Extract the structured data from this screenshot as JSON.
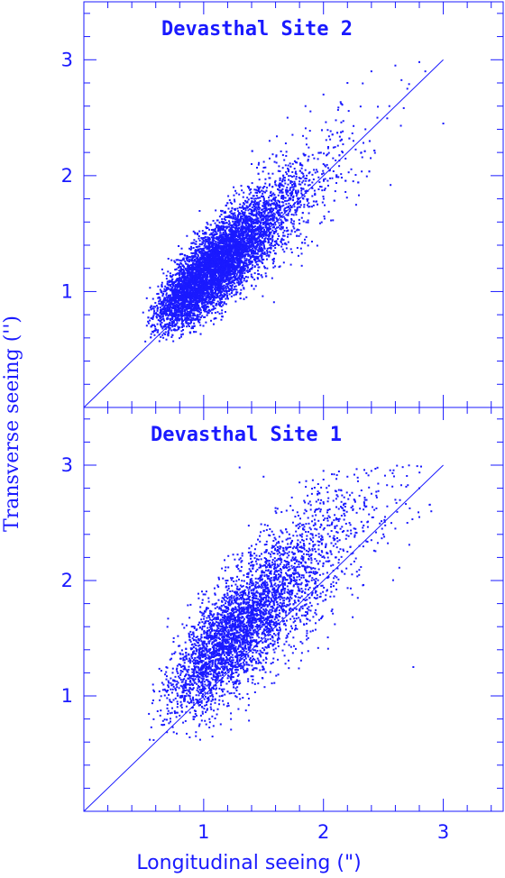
{
  "chart_data": {
    "type": "scatter",
    "xlabel": "Longitudinal seeing (\")",
    "ylabel": "Transverse seeing ('')",
    "xlim": [
      0.0,
      3.5
    ],
    "ylim": [
      0.0,
      3.5
    ],
    "x_tick_labels": [
      "1",
      "2",
      "3"
    ],
    "y_tick_labels": [
      "1",
      "2",
      "3"
    ],
    "colors": {
      "points": "#1a1aff",
      "axes": "#1a1aff"
    },
    "panels": [
      {
        "title": "Devasthal Site 2",
        "reference_line": {
          "from": [
            0,
            0
          ],
          "to": [
            3,
            3
          ]
        },
        "series": [
          {
            "description_points": "dense cloud, approx 9000 points",
            "x": [
              0.55,
              0.62,
              0.68,
              0.72,
              0.75,
              0.78,
              0.8,
              0.82,
              0.85,
              0.88,
              0.9,
              0.92,
              0.95,
              0.98,
              1.0,
              1.02,
              1.05,
              1.08,
              1.1,
              1.12,
              1.15,
              1.18,
              1.2,
              1.22,
              1.25,
              1.28,
              1.3,
              1.33,
              1.36,
              1.4,
              1.44,
              1.48,
              1.52,
              1.56,
              1.6,
              1.65,
              1.7,
              1.75,
              1.8,
              1.86,
              1.92,
              2.0,
              2.08,
              2.16,
              2.25,
              2.35,
              2.45,
              2.55,
              2.7,
              2.85,
              0.95,
              1.1,
              1.25,
              1.4,
              1.55,
              1.7,
              1.85,
              2.0,
              2.2,
              2.4,
              2.6,
              2.8,
              3.0
            ],
            "y": [
              0.75,
              0.8,
              0.85,
              0.9,
              0.92,
              0.95,
              1.0,
              1.02,
              1.05,
              1.08,
              1.1,
              1.12,
              1.15,
              1.18,
              1.2,
              1.22,
              1.25,
              1.28,
              1.3,
              1.32,
              1.35,
              1.38,
              1.4,
              1.42,
              1.45,
              1.48,
              1.5,
              1.52,
              1.55,
              1.58,
              1.62,
              1.66,
              1.7,
              1.74,
              1.78,
              1.82,
              1.86,
              1.9,
              1.95,
              2.0,
              2.05,
              2.1,
              2.15,
              2.2,
              2.3,
              2.4,
              2.5,
              2.6,
              2.75,
              2.9,
              1.5,
              1.7,
              1.9,
              2.1,
              2.3,
              2.5,
              2.6,
              2.7,
              2.8,
              2.9,
              2.95,
              2.98,
              2.45
            ]
          }
        ]
      },
      {
        "title": "Devasthal Site 1",
        "reference_line": {
          "from": [
            0,
            0
          ],
          "to": [
            3,
            3
          ]
        },
        "series": [
          {
            "description_points": "cloud, approx 4500 points",
            "x": [
              0.55,
              0.65,
              0.72,
              0.78,
              0.82,
              0.86,
              0.9,
              0.95,
              1.0,
              1.05,
              1.1,
              1.15,
              1.2,
              1.25,
              1.3,
              1.35,
              1.4,
              1.45,
              1.5,
              1.55,
              1.6,
              1.65,
              1.7,
              1.75,
              1.8,
              1.9,
              2.0,
              2.1,
              2.2,
              2.3,
              2.4,
              2.5,
              2.6,
              2.7,
              2.8,
              2.9,
              1.2,
              1.4,
              1.6,
              1.8,
              2.0,
              2.2,
              2.4,
              2.6,
              2.8,
              2.75,
              1.3,
              1.5
            ],
            "y": [
              0.62,
              0.75,
              0.85,
              0.95,
              1.0,
              1.05,
              1.1,
              1.18,
              1.25,
              1.3,
              1.38,
              1.42,
              1.48,
              1.52,
              1.55,
              1.6,
              1.65,
              1.7,
              1.75,
              1.8,
              1.85,
              1.9,
              1.95,
              2.0,
              2.05,
              2.1,
              2.15,
              2.2,
              2.25,
              2.3,
              2.35,
              2.4,
              2.45,
              2.5,
              2.55,
              2.6,
              2.0,
              2.3,
              2.6,
              2.85,
              2.95,
              2.9,
              2.95,
              2.7,
              2.8,
              1.25,
              2.98,
              2.9
            ]
          }
        ]
      }
    ]
  }
}
